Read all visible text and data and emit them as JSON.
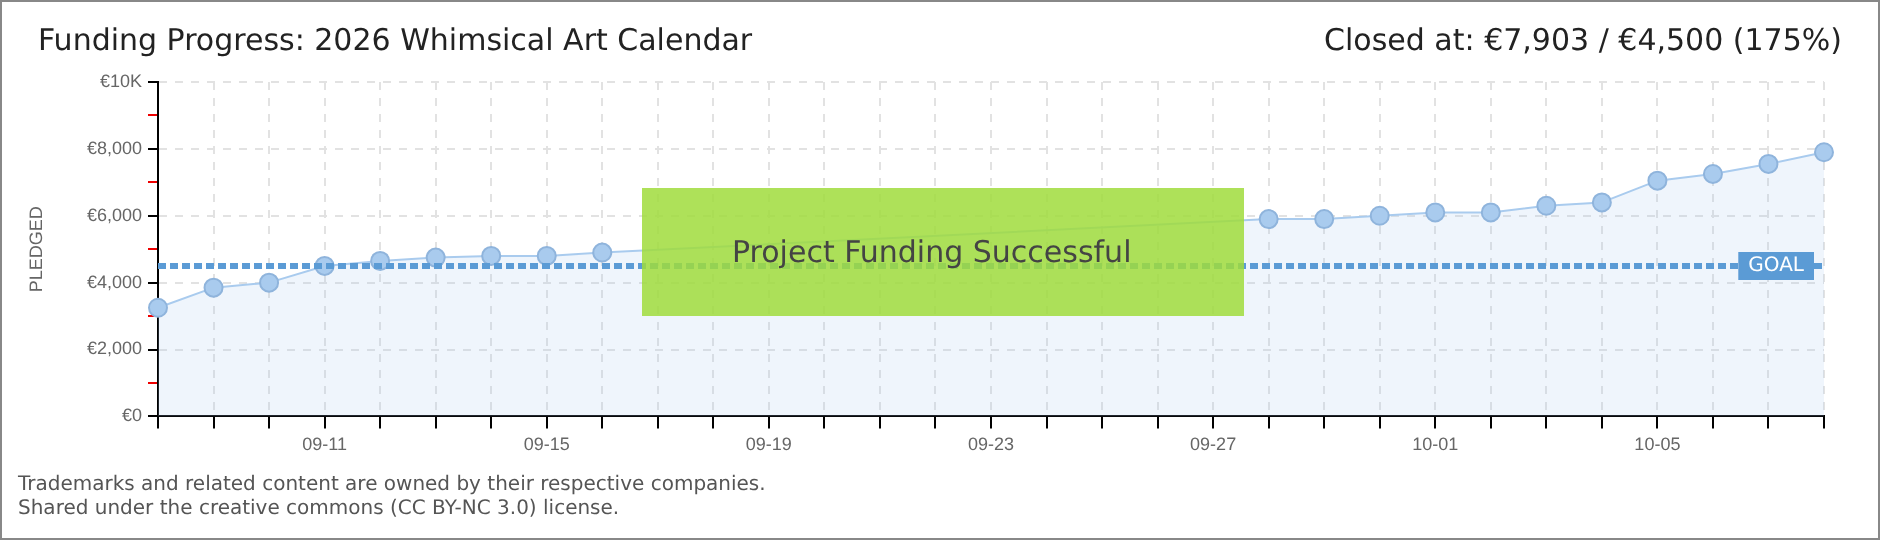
{
  "chart_data": {
    "type": "area",
    "title": "Funding Progress: 2026 Whimsical Art Calendar",
    "subtitle": "Closed at:  €7,903 /  €4,500 (175%)",
    "ylabel": "PLEDGED",
    "categories": [
      null,
      null,
      null,
      "09-11",
      null,
      null,
      null,
      "09-15",
      null,
      null,
      null,
      "09-19",
      null,
      null,
      null,
      "09-23",
      null,
      null,
      null,
      "09-27",
      null,
      null,
      null,
      "10-01",
      null,
      null,
      null,
      "10-05",
      null,
      null,
      null
    ],
    "series": [
      {
        "color": "#a9cbee",
        "values": [
          3250,
          3850,
          4000,
          4500,
          4650,
          4750,
          4800,
          4800,
          4900,
          null,
          null,
          null,
          null,
          null,
          null,
          null,
          null,
          null,
          null,
          null,
          5900,
          5900,
          6000,
          6100,
          6100,
          6300,
          6400,
          7050,
          7250,
          7550,
          7900
        ]
      }
    ],
    "ylim": [
      0,
      10000
    ],
    "yticks": [
      {
        "value": 0,
        "label": "€0"
      },
      {
        "value": 1000,
        "label": null
      },
      {
        "value": 2000,
        "label": "€2,000"
      },
      {
        "value": 3000,
        "label": null
      },
      {
        "value": 4000,
        "label": "€4,000"
      },
      {
        "value": 5000,
        "label": null
      },
      {
        "value": 6000,
        "label": "€6,000"
      },
      {
        "value": 7000,
        "label": null
      },
      {
        "value": 8000,
        "label": "€8,000"
      },
      {
        "value": 9000,
        "label": null
      },
      {
        "value": 10000,
        "label": "€10K"
      }
    ],
    "grid": true,
    "marker": "circle",
    "ref_lines": [
      {
        "axis": "y",
        "value": 4500,
        "label": "GOAL",
        "color": "#5b9bd5",
        "line_style": "dashed"
      }
    ],
    "annotations": [
      "Project Funding Successful",
      "Trademarks and related content are owned by their respective companies.",
      "Shared under the creative commons (CC BY-NC 3.0) license."
    ]
  }
}
